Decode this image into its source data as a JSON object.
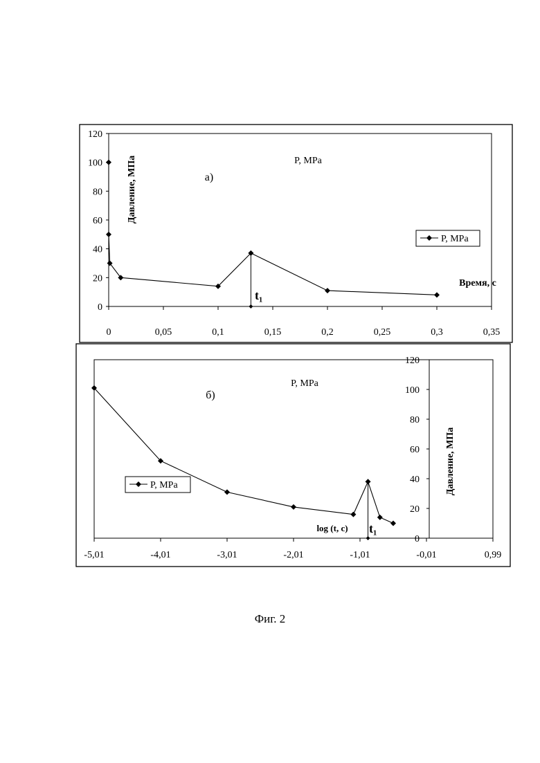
{
  "figure": {
    "caption": "Фиг. 2"
  },
  "chart_data": [
    {
      "type": "line",
      "panel_label": "а)",
      "title": "P, MPa",
      "xlabel": "Время, с",
      "ylabel": "Давление, МПа",
      "xlim": [
        0,
        0.35
      ],
      "ylim": [
        0,
        120
      ],
      "x_ticks": [
        "0",
        "0,05",
        "0,1",
        "0,15",
        "0,2",
        "0,25",
        "0,3",
        "0,35"
      ],
      "y_ticks": [
        "0",
        "20",
        "40",
        "60",
        "80",
        "100",
        "120"
      ],
      "legend": {
        "position": "right",
        "label": "P, MPa"
      },
      "grid": false,
      "series": [
        {
          "name": "P, MPa",
          "x": [
            0,
            0,
            0.001,
            0.011,
            0.1,
            0.13,
            0.2,
            0.3
          ],
          "y": [
            100,
            50,
            30,
            20,
            14,
            37,
            11,
            8
          ]
        }
      ],
      "marker_line": {
        "x": 0.13,
        "label": "t₁"
      }
    },
    {
      "type": "line",
      "panel_label": "б)",
      "title": "P, MPa",
      "xlabel": "log (t, c)",
      "ylabel": "Давление, МПа",
      "xlim": [
        -5.01,
        0.99
      ],
      "ylim": [
        0,
        120
      ],
      "x_ticks": [
        "-5,01",
        "-4,01",
        "-3,01",
        "-2,01",
        "-1,01",
        "-0,01",
        "0,99"
      ],
      "y_ticks": [
        "0",
        "20",
        "40",
        "60",
        "80",
        "100",
        "120"
      ],
      "legend": {
        "position": "left",
        "label": "P, MPa"
      },
      "grid": false,
      "series": [
        {
          "name": "P, MPa",
          "x": [
            -5.01,
            -4.01,
            -3.01,
            -2.01,
            -1.11,
            -0.89,
            -0.71,
            -0.51
          ],
          "y": [
            101,
            52,
            31,
            21,
            16,
            38,
            14,
            10
          ]
        }
      ],
      "marker_line": {
        "x": -0.89,
        "label": "t₁"
      }
    }
  ]
}
